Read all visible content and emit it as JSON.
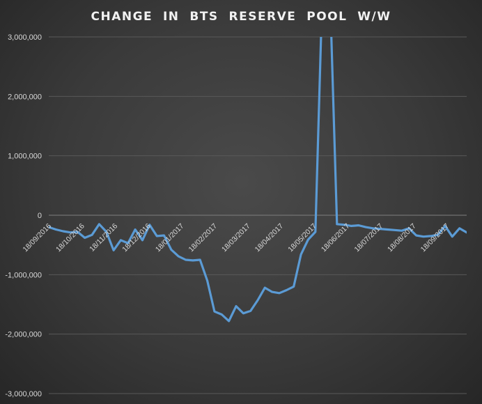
{
  "chart_data": {
    "type": "line",
    "title": "CHANGE  IN  BTS  RESERVE  POOL  W/W",
    "xlabel": "",
    "ylabel": "",
    "ylim": [
      -3000000,
      3000000
    ],
    "grid": true,
    "legend": "none",
    "yticks": [
      3000000,
      2000000,
      1000000,
      0,
      -1000000,
      -2000000,
      -3000000
    ],
    "ytick_labels": [
      "3,000,000",
      "2,000,000",
      "1,000,000",
      "0",
      "-1,000,000",
      "-2,000,000",
      "-3,000,000"
    ],
    "xtick_labels": [
      "18/09/2016",
      "18/10/2016",
      "18/11/2016",
      "18/12/2016",
      "18/01/2017",
      "18/02/2017",
      "18/03/2017",
      "18/04/2017",
      "18/05/2017",
      "18/06/2017",
      "18/07/2017",
      "18/08/2017",
      "18/09/2017"
    ],
    "series": [
      {
        "color": "#5b9bd5",
        "values": [
          -200000,
          -240000,
          -270000,
          -290000,
          -280000,
          -380000,
          -330000,
          -150000,
          -280000,
          -590000,
          -420000,
          -470000,
          -240000,
          -420000,
          -160000,
          -350000,
          -340000,
          -580000,
          -690000,
          -750000,
          -760000,
          -750000,
          -1100000,
          -1620000,
          -1670000,
          -1780000,
          -1530000,
          -1650000,
          -1610000,
          -1430000,
          -1220000,
          -1290000,
          -1310000,
          -1260000,
          -1200000,
          -660000,
          -410000,
          -280000,
          3900000,
          3900000,
          -150000,
          -160000,
          -180000,
          -170000,
          -200000,
          -220000,
          -230000,
          -240000,
          -250000,
          -260000,
          -220000,
          -340000,
          -360000,
          -350000,
          -330000,
          -180000,
          -360000,
          -220000,
          -290000
        ]
      }
    ]
  }
}
